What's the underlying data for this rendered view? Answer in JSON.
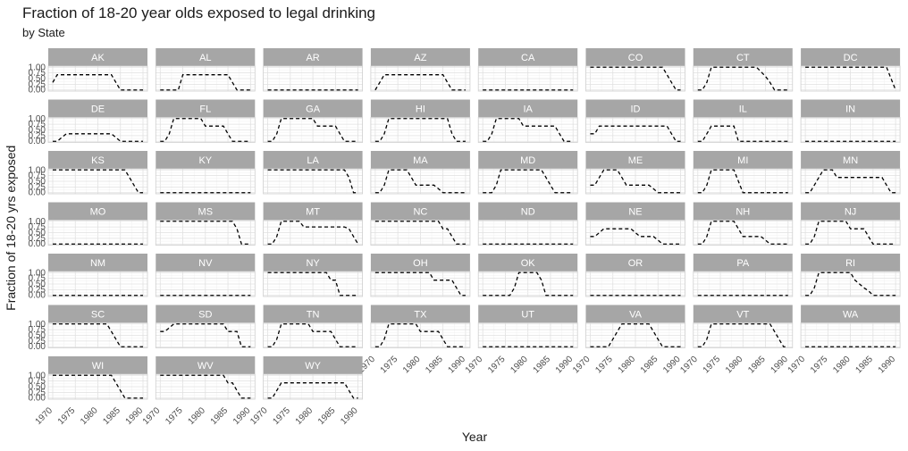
{
  "chart_data": {
    "type": "line",
    "title": "Fraction of 18-20 year olds exposed to legal drinking",
    "subtitle": "by State",
    "xlabel": "Year",
    "ylabel": "Fraction of 18-20 yrs exposed",
    "xlim": [
      1970,
      1990
    ],
    "ylim": [
      0,
      1
    ],
    "x_ticks": [
      1970,
      1975,
      1980,
      1985,
      1990
    ],
    "y_ticks": [
      0,
      0.25,
      0.5,
      0.75,
      1
    ],
    "y_tick_labels": [
      "0.00",
      "0.25",
      "0.50",
      "0.75",
      "1.00"
    ],
    "facet_strip_color": "#a6a6a6",
    "line_style": "dashed",
    "line_color": "#000000",
    "grid": true,
    "x": [
      1970,
      1971,
      1972,
      1973,
      1974,
      1975,
      1976,
      1977,
      1978,
      1979,
      1980,
      1981,
      1982,
      1983,
      1984,
      1985,
      1986,
      1987,
      1988,
      1989,
      1990
    ],
    "panels": [
      {
        "state": "AK",
        "values": [
          0.33,
          0.67,
          0.67,
          0.67,
          0.67,
          0.67,
          0.67,
          0.67,
          0.67,
          0.67,
          0.67,
          0.67,
          0.67,
          0.67,
          0.33,
          0,
          0,
          0,
          0,
          0,
          0
        ]
      },
      {
        "state": "AL",
        "values": [
          0,
          0,
          0,
          0,
          0,
          0.67,
          0.67,
          0.67,
          0.67,
          0.67,
          0.67,
          0.67,
          0.67,
          0.67,
          0.67,
          0.67,
          0.33,
          0,
          0,
          0,
          0
        ]
      },
      {
        "state": "AR",
        "values": [
          0,
          0,
          0,
          0,
          0,
          0,
          0,
          0,
          0,
          0,
          0,
          0,
          0,
          0,
          0,
          0,
          0,
          0,
          0,
          0,
          0
        ]
      },
      {
        "state": "AZ",
        "values": [
          0,
          0.33,
          0.67,
          0.67,
          0.67,
          0.67,
          0.67,
          0.67,
          0.67,
          0.67,
          0.67,
          0.67,
          0.67,
          0.67,
          0.67,
          0.67,
          0.33,
          0,
          0,
          0,
          0
        ]
      },
      {
        "state": "CA",
        "values": [
          0,
          0,
          0,
          0,
          0,
          0,
          0,
          0,
          0,
          0,
          0,
          0,
          0,
          0,
          0,
          0,
          0,
          0,
          0,
          0,
          0
        ]
      },
      {
        "state": "CO",
        "values": [
          1,
          1,
          1,
          1,
          1,
          1,
          1,
          1,
          1,
          1,
          1,
          1,
          1,
          1,
          1,
          1,
          1,
          0.67,
          0.33,
          0,
          0
        ]
      },
      {
        "state": "CT",
        "values": [
          0,
          0,
          0.33,
          1,
          1,
          1,
          1,
          1,
          1,
          1,
          1,
          1,
          1,
          1,
          0.8,
          0.6,
          0.33,
          0,
          0,
          0,
          0
        ]
      },
      {
        "state": "DC",
        "values": [
          1,
          1,
          1,
          1,
          1,
          1,
          1,
          1,
          1,
          1,
          1,
          1,
          1,
          1,
          1,
          1,
          1,
          1,
          1,
          0.5,
          0
        ]
      },
      {
        "state": "DE",
        "values": [
          0,
          0,
          0.17,
          0.33,
          0.33,
          0.33,
          0.33,
          0.33,
          0.33,
          0.33,
          0.33,
          0.33,
          0.33,
          0.33,
          0.17,
          0,
          0,
          0,
          0,
          0,
          0
        ]
      },
      {
        "state": "FL",
        "values": [
          0,
          0,
          0.33,
          1,
          1,
          1,
          1,
          1,
          1,
          1,
          0.67,
          0.67,
          0.67,
          0.67,
          0.67,
          0.33,
          0,
          0,
          0,
          0,
          0
        ]
      },
      {
        "state": "GA",
        "values": [
          0,
          0,
          0.33,
          1,
          1,
          1,
          1,
          1,
          1,
          1,
          1,
          0.67,
          0.67,
          0.67,
          0.67,
          0.67,
          0.33,
          0,
          0,
          0,
          0
        ]
      },
      {
        "state": "HI",
        "values": [
          0,
          0,
          0.33,
          1,
          1,
          1,
          1,
          1,
          1,
          1,
          1,
          1,
          1,
          1,
          1,
          1,
          1,
          0.33,
          0,
          0,
          0
        ]
      },
      {
        "state": "IA",
        "values": [
          0,
          0,
          0.33,
          1,
          1,
          1,
          1,
          1,
          1,
          0.67,
          0.67,
          0.67,
          0.67,
          0.67,
          0.67,
          0.67,
          0.67,
          0.33,
          0,
          0,
          0
        ]
      },
      {
        "state": "ID",
        "values": [
          0.33,
          0.33,
          0.67,
          0.67,
          0.67,
          0.67,
          0.67,
          0.67,
          0.67,
          0.67,
          0.67,
          0.67,
          0.67,
          0.67,
          0.67,
          0.67,
          0.67,
          0.67,
          0.33,
          0,
          0
        ]
      },
      {
        "state": "IL",
        "values": [
          0,
          0,
          0.33,
          0.67,
          0.67,
          0.67,
          0.67,
          0.67,
          0.67,
          0,
          0,
          0,
          0,
          0,
          0,
          0,
          0,
          0,
          0,
          0,
          0
        ]
      },
      {
        "state": "IN",
        "values": [
          0,
          0,
          0,
          0,
          0,
          0,
          0,
          0,
          0,
          0,
          0,
          0,
          0,
          0,
          0,
          0,
          0,
          0,
          0,
          0,
          0
        ]
      },
      {
        "state": "KS",
        "values": [
          1,
          1,
          1,
          1,
          1,
          1,
          1,
          1,
          1,
          1,
          1,
          1,
          1,
          1,
          1,
          1,
          1,
          0.67,
          0.33,
          0,
          0
        ]
      },
      {
        "state": "KY",
        "values": [
          0,
          0,
          0,
          0,
          0,
          0,
          0,
          0,
          0,
          0,
          0,
          0,
          0,
          0,
          0,
          0,
          0,
          0,
          0,
          0,
          0
        ]
      },
      {
        "state": "LA",
        "values": [
          1,
          1,
          1,
          1,
          1,
          1,
          1,
          1,
          1,
          1,
          1,
          1,
          1,
          1,
          1,
          1,
          1,
          1,
          0.67,
          0,
          0
        ]
      },
      {
        "state": "MA",
        "values": [
          0,
          0,
          0.33,
          1,
          1,
          1,
          1,
          1,
          0.67,
          0.33,
          0.33,
          0.33,
          0.33,
          0.33,
          0.17,
          0,
          0,
          0,
          0,
          0,
          0
        ]
      },
      {
        "state": "MD",
        "values": [
          0,
          0,
          0,
          0.33,
          1,
          1,
          1,
          1,
          1,
          1,
          1,
          1,
          1,
          1,
          0.67,
          0.33,
          0,
          0,
          0,
          0,
          0
        ]
      },
      {
        "state": "ME",
        "values": [
          0.33,
          0.33,
          0.67,
          1,
          1,
          1,
          1,
          0.67,
          0.33,
          0.33,
          0.33,
          0.33,
          0.33,
          0.33,
          0.17,
          0,
          0,
          0,
          0,
          0,
          0
        ]
      },
      {
        "state": "MI",
        "values": [
          0,
          0,
          0.33,
          1,
          1,
          1,
          1,
          1,
          1,
          0.5,
          0,
          0,
          0,
          0,
          0,
          0,
          0,
          0,
          0,
          0,
          0
        ]
      },
      {
        "state": "MN",
        "values": [
          0,
          0,
          0.33,
          0.67,
          1,
          1,
          1,
          0.67,
          0.67,
          0.67,
          0.67,
          0.67,
          0.67,
          0.67,
          0.67,
          0.67,
          0.67,
          0.67,
          0.33,
          0,
          0
        ]
      },
      {
        "state": "MO",
        "values": [
          0,
          0,
          0,
          0,
          0,
          0,
          0,
          0,
          0,
          0,
          0,
          0,
          0,
          0,
          0,
          0,
          0,
          0,
          0,
          0,
          0
        ]
      },
      {
        "state": "MS",
        "values": [
          1,
          1,
          1,
          1,
          1,
          1,
          1,
          1,
          1,
          1,
          1,
          1,
          1,
          1,
          1,
          1,
          1,
          0.67,
          0,
          0,
          0
        ]
      },
      {
        "state": "MT",
        "values": [
          0,
          0,
          0.33,
          1,
          1,
          1,
          1,
          1,
          0.75,
          0.75,
          0.75,
          0.75,
          0.75,
          0.75,
          0.75,
          0.75,
          0.75,
          0.75,
          0.67,
          0.33,
          0
        ]
      },
      {
        "state": "NC",
        "values": [
          1,
          1,
          1,
          1,
          1,
          1,
          1,
          1,
          1,
          1,
          1,
          1,
          1,
          1,
          1,
          0.67,
          0.67,
          0.33,
          0,
          0,
          0
        ]
      },
      {
        "state": "ND",
        "values": [
          0,
          0,
          0,
          0,
          0,
          0,
          0,
          0,
          0,
          0,
          0,
          0,
          0,
          0,
          0,
          0,
          0,
          0,
          0,
          0,
          0
        ]
      },
      {
        "state": "NE",
        "values": [
          0.33,
          0.33,
          0.5,
          0.67,
          0.67,
          0.67,
          0.67,
          0.67,
          0.67,
          0.67,
          0.5,
          0.33,
          0.33,
          0.33,
          0.33,
          0.17,
          0,
          0,
          0,
          0,
          0
        ]
      },
      {
        "state": "NH",
        "values": [
          0,
          0,
          0.33,
          1,
          1,
          1,
          1,
          1,
          1,
          0.67,
          0.33,
          0.33,
          0.33,
          0.33,
          0.33,
          0.17,
          0,
          0,
          0,
          0,
          0
        ]
      },
      {
        "state": "NJ",
        "values": [
          0,
          0,
          0.33,
          1,
          1,
          1,
          1,
          1,
          1,
          1,
          0.67,
          0.67,
          0.67,
          0.67,
          0.33,
          0,
          0,
          0,
          0,
          0,
          0
        ]
      },
      {
        "state": "NM",
        "values": [
          0,
          0,
          0,
          0,
          0,
          0,
          0,
          0,
          0,
          0,
          0,
          0,
          0,
          0,
          0,
          0,
          0,
          0,
          0,
          0,
          0
        ]
      },
      {
        "state": "NV",
        "values": [
          0,
          0,
          0,
          0,
          0,
          0,
          0,
          0,
          0,
          0,
          0,
          0,
          0,
          0,
          0,
          0,
          0,
          0,
          0,
          0,
          0
        ]
      },
      {
        "state": "NY",
        "values": [
          1,
          1,
          1,
          1,
          1,
          1,
          1,
          1,
          1,
          1,
          1,
          1,
          1,
          1,
          0.67,
          0.67,
          0,
          0,
          0,
          0,
          0
        ]
      },
      {
        "state": "OH",
        "values": [
          1,
          1,
          1,
          1,
          1,
          1,
          1,
          1,
          1,
          1,
          1,
          1,
          1,
          0.67,
          0.67,
          0.67,
          0.67,
          0.67,
          0.33,
          0,
          0
        ]
      },
      {
        "state": "OK",
        "values": [
          0,
          0,
          0,
          0,
          0,
          0,
          0,
          0.33,
          1,
          1,
          1,
          1,
          1,
          0.67,
          0,
          0,
          0,
          0,
          0,
          0,
          0
        ]
      },
      {
        "state": "OR",
        "values": [
          0,
          0,
          0,
          0,
          0,
          0,
          0,
          0,
          0,
          0,
          0,
          0,
          0,
          0,
          0,
          0,
          0,
          0,
          0,
          0,
          0
        ]
      },
      {
        "state": "PA",
        "values": [
          0,
          0,
          0,
          0,
          0,
          0,
          0,
          0,
          0,
          0,
          0,
          0,
          0,
          0,
          0,
          0,
          0,
          0,
          0,
          0,
          0
        ]
      },
      {
        "state": "RI",
        "values": [
          0,
          0,
          0.33,
          1,
          1,
          1,
          1,
          1,
          1,
          1,
          1,
          0.67,
          0.5,
          0.33,
          0.2,
          0,
          0,
          0,
          0,
          0,
          0
        ]
      },
      {
        "state": "SC",
        "values": [
          1,
          1,
          1,
          1,
          1,
          1,
          1,
          1,
          1,
          1,
          1,
          1,
          1,
          0.67,
          0.33,
          0,
          0,
          0,
          0,
          0,
          0
        ]
      },
      {
        "state": "SD",
        "values": [
          0.67,
          0.67,
          0.83,
          1,
          1,
          1,
          1,
          1,
          1,
          1,
          1,
          1,
          1,
          1,
          1,
          0.67,
          0.67,
          0.67,
          0,
          0,
          0
        ]
      },
      {
        "state": "TN",
        "values": [
          0,
          0,
          0.33,
          1,
          1,
          1,
          1,
          1,
          1,
          1,
          0.67,
          0.67,
          0.67,
          0.67,
          0.67,
          0.33,
          0,
          0,
          0,
          0,
          0
        ]
      },
      {
        "state": "TX",
        "values": [
          0,
          0,
          0.33,
          1,
          1,
          1,
          1,
          1,
          1,
          1,
          0.67,
          0.67,
          0.67,
          0.67,
          0.67,
          0.33,
          0,
          0,
          0,
          0,
          0
        ]
      },
      {
        "state": "UT",
        "values": [
          0,
          0,
          0,
          0,
          0,
          0,
          0,
          0,
          0,
          0,
          0,
          0,
          0,
          0,
          0,
          0,
          0,
          0,
          0,
          0,
          0
        ]
      },
      {
        "state": "VA",
        "values": [
          0,
          0,
          0,
          0,
          0,
          0.33,
          0.67,
          1,
          1,
          1,
          1,
          1,
          1,
          1,
          0.67,
          0.33,
          0,
          0,
          0,
          0,
          0
        ]
      },
      {
        "state": "VT",
        "values": [
          0,
          0,
          0.33,
          1,
          1,
          1,
          1,
          1,
          1,
          1,
          1,
          1,
          1,
          1,
          1,
          1,
          1,
          0.67,
          0.33,
          0,
          0
        ]
      },
      {
        "state": "WA",
        "values": [
          0,
          0,
          0,
          0,
          0,
          0,
          0,
          0,
          0,
          0,
          0,
          0,
          0,
          0,
          0,
          0,
          0,
          0,
          0,
          0,
          0
        ]
      },
      {
        "state": "WI",
        "values": [
          1,
          1,
          1,
          1,
          1,
          1,
          1,
          1,
          1,
          1,
          1,
          1,
          1,
          1,
          0.67,
          0.33,
          0,
          0,
          0,
          0,
          0
        ]
      },
      {
        "state": "WV",
        "values": [
          1,
          1,
          1,
          1,
          1,
          1,
          1,
          1,
          1,
          1,
          1,
          1,
          1,
          1,
          1,
          0.67,
          0.67,
          0.33,
          0,
          0,
          0
        ]
      },
      {
        "state": "WY",
        "values": [
          0,
          0,
          0.33,
          0.67,
          0.67,
          0.67,
          0.67,
          0.67,
          0.67,
          0.67,
          0.67,
          0.67,
          0.67,
          0.67,
          0.67,
          0.67,
          0.67,
          0.67,
          0.33,
          0,
          0
        ]
      }
    ]
  }
}
